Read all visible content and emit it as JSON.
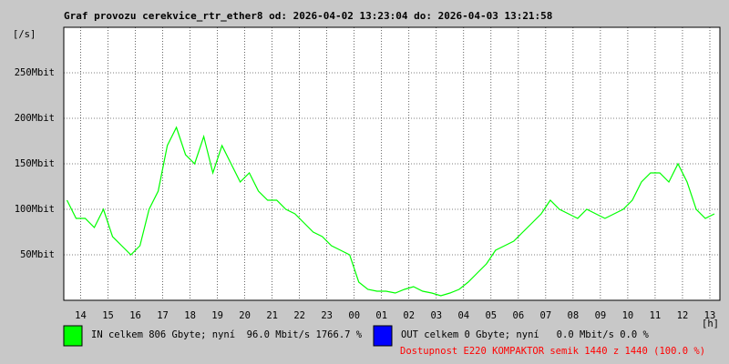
{
  "chart_data": {
    "type": "line",
    "title": "Graf provozu cerekvice_rtr_ether8 od: 2026-04-02 13:23:04 do: 2026-04-03 13:21:58",
    "y_label": "[/s]",
    "x_label": "[h]",
    "xlim": [
      803,
      2242
    ],
    "ylim": [
      0,
      300
    ],
    "xticks": [
      {
        "value": 840,
        "label": "14"
      },
      {
        "value": 900,
        "label": "15"
      },
      {
        "value": 960,
        "label": "16"
      },
      {
        "value": 1020,
        "label": "17"
      },
      {
        "value": 1080,
        "label": "18"
      },
      {
        "value": 1140,
        "label": "19"
      },
      {
        "value": 1200,
        "label": "20"
      },
      {
        "value": 1260,
        "label": "21"
      },
      {
        "value": 1320,
        "label": "22"
      },
      {
        "value": 1380,
        "label": "23"
      },
      {
        "value": 1440,
        "label": "00"
      },
      {
        "value": 1500,
        "label": "01"
      },
      {
        "value": 1560,
        "label": "02"
      },
      {
        "value": 1620,
        "label": "03"
      },
      {
        "value": 1680,
        "label": "04"
      },
      {
        "value": 1740,
        "label": "05"
      },
      {
        "value": 1800,
        "label": "06"
      },
      {
        "value": 1860,
        "label": "07"
      },
      {
        "value": 1920,
        "label": "08"
      },
      {
        "value": 1980,
        "label": "09"
      },
      {
        "value": 2040,
        "label": "10"
      },
      {
        "value": 2100,
        "label": "11"
      },
      {
        "value": 2160,
        "label": "12"
      },
      {
        "value": 2220,
        "label": "13"
      }
    ],
    "yticks": [
      {
        "value": 50,
        "label": "50Mbit"
      },
      {
        "value": 100,
        "label": "100Mbit"
      },
      {
        "value": 150,
        "label": "150Mbit"
      },
      {
        "value": 200,
        "label": "200Mbit"
      },
      {
        "value": 250,
        "label": "250Mbit"
      }
    ],
    "grid": true,
    "x": [
      810,
      830,
      850,
      870,
      890,
      910,
      930,
      950,
      970,
      990,
      1010,
      1030,
      1050,
      1070,
      1090,
      1110,
      1130,
      1150,
      1170,
      1190,
      1210,
      1230,
      1250,
      1270,
      1290,
      1310,
      1330,
      1350,
      1370,
      1390,
      1410,
      1430,
      1450,
      1470,
      1490,
      1510,
      1530,
      1550,
      1570,
      1590,
      1610,
      1630,
      1650,
      1670,
      1690,
      1710,
      1730,
      1750,
      1770,
      1790,
      1810,
      1830,
      1850,
      1870,
      1890,
      1910,
      1930,
      1950,
      1970,
      1990,
      2010,
      2030,
      2050,
      2070,
      2090,
      2110,
      2130,
      2150,
      2170,
      2190,
      2210,
      2230
    ],
    "series": [
      {
        "name": "IN",
        "color": "#00ff00",
        "values": [
          110,
          90,
          90,
          80,
          100,
          70,
          60,
          50,
          60,
          100,
          120,
          170,
          190,
          160,
          150,
          180,
          140,
          170,
          150,
          130,
          140,
          120,
          110,
          110,
          100,
          95,
          85,
          75,
          70,
          60,
          55,
          50,
          20,
          12,
          10,
          10,
          8,
          12,
          15,
          10,
          8,
          5,
          8,
          12,
          20,
          30,
          40,
          55,
          60,
          65,
          75,
          85,
          95,
          110,
          100,
          95,
          90,
          100,
          95,
          90,
          95,
          100,
          110,
          130,
          140,
          140,
          130,
          150,
          130,
          100,
          90,
          95
        ]
      }
    ],
    "legend": [
      {
        "text": "IN celkem 806 Gbyte; nyní  96.0 Mbit/s 1766.7 %",
        "color": "#00ff00"
      },
      {
        "text": "OUT celkem 0 Gbyte; nyní   0.0 Mbit/s 0.0 %",
        "color": "#0000ff"
      }
    ],
    "availability": {
      "text": "Dostupnost E220 KOMPAKTOR semik 1440 z 1440 (100.0 %)",
      "color": "#ff0000"
    }
  }
}
